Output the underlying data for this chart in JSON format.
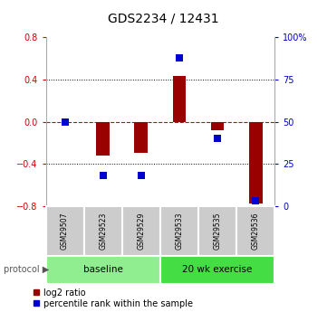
{
  "title": "GDS2234 / 12431",
  "samples": [
    "GSM29507",
    "GSM29523",
    "GSM29529",
    "GSM29533",
    "GSM29535",
    "GSM29536"
  ],
  "log2_ratio": [
    0.0,
    -0.32,
    -0.3,
    0.43,
    -0.08,
    -0.78
  ],
  "percentile_rank": [
    50,
    18,
    18,
    88,
    40,
    3
  ],
  "ylim_left": [
    -0.8,
    0.8
  ],
  "ylim_right": [
    0,
    100
  ],
  "bar_color": "#990000",
  "dot_color": "#0000cc",
  "baseline_green": "#90ee90",
  "exercise_green": "#44dd44",
  "yticks_left": [
    -0.8,
    -0.4,
    0.0,
    0.4,
    0.8
  ],
  "yticks_right": [
    0,
    25,
    50,
    75,
    100
  ],
  "ytick_labels_right": [
    "0",
    "25",
    "50",
    "75",
    "100%"
  ],
  "label_color_red": "#cc0000",
  "label_color_blue": "#0000cc",
  "bar_width": 0.35,
  "dot_size": 30
}
